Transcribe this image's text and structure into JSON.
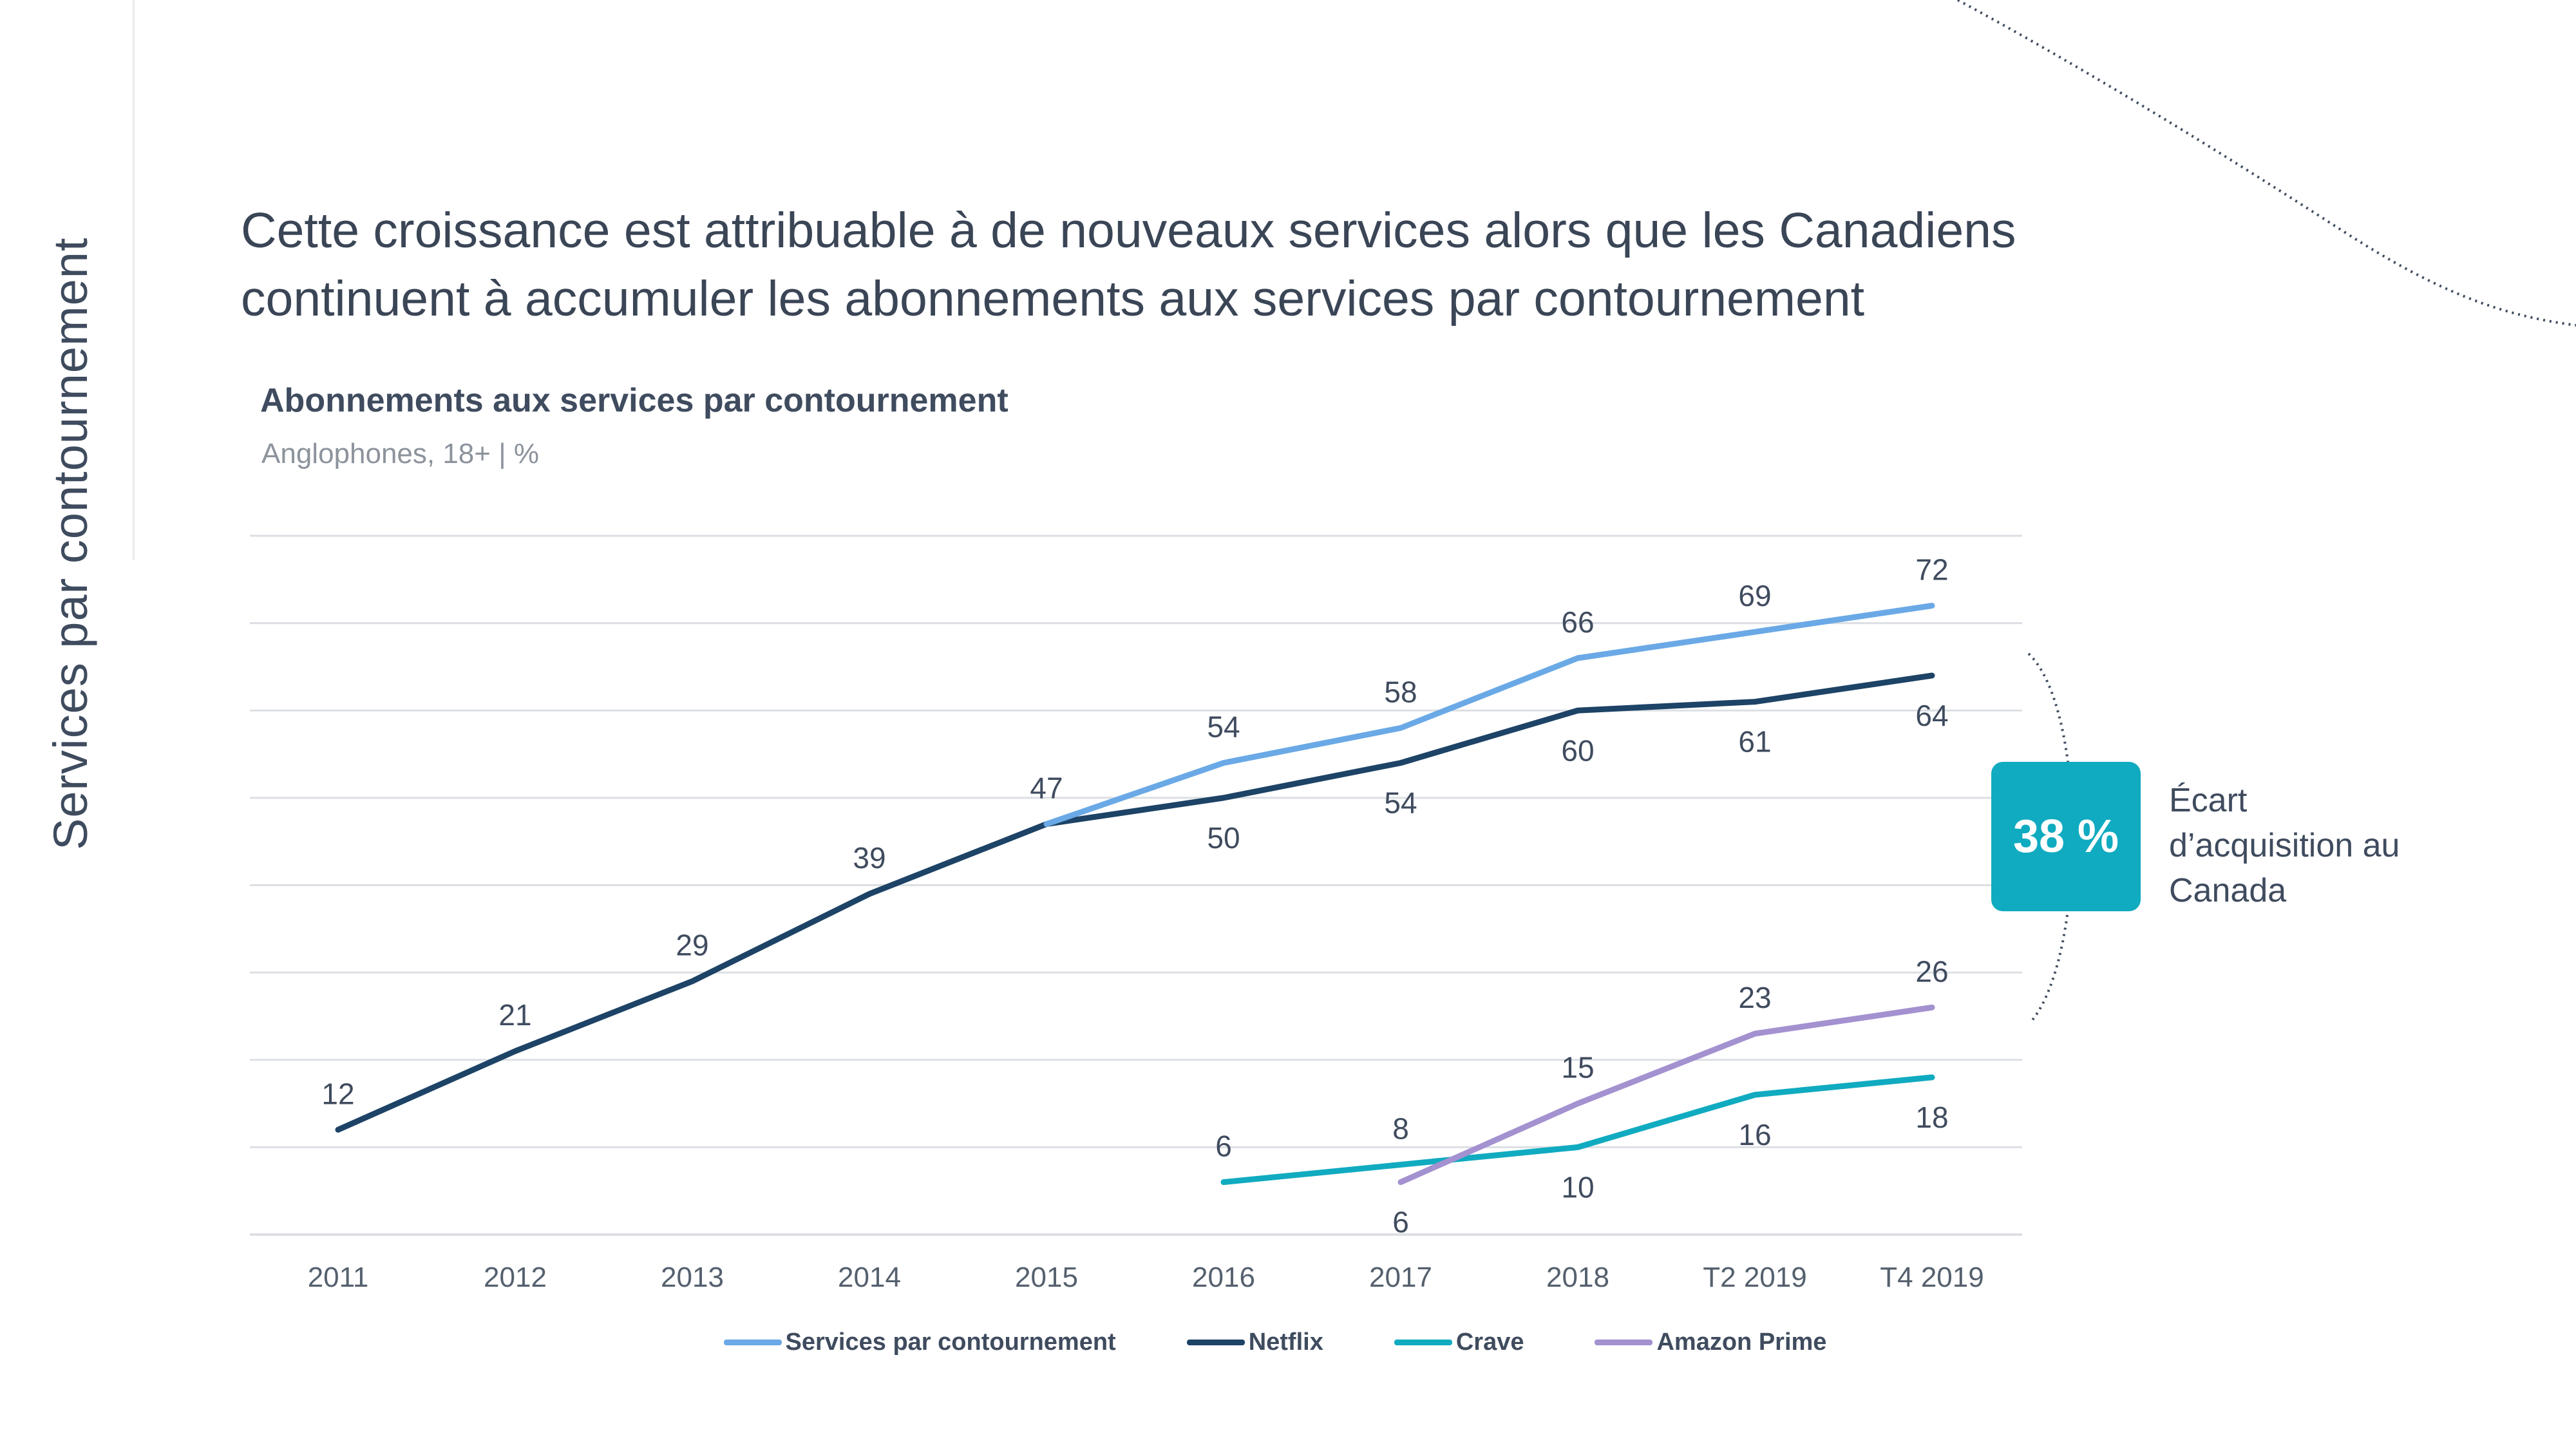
{
  "side_title": "Services par contournement",
  "headline_line1": "Cette croissance est attribuable à de nouveaux services alors que les Canadiens",
  "headline_line2": "continuent à accumuler les abonnements aux services par contournement",
  "gap": {
    "value": "38 %",
    "label": "Écart d’acquisition au Canada"
  },
  "colors": {
    "ott": "#6aa9e6",
    "netflix": "#1d4366",
    "crave": "#10abc0",
    "amazon": "#a391d0",
    "text": "#3f4b5e",
    "grid": "#dcdfe3",
    "accent_box": "#10abc0"
  },
  "chart_data": {
    "type": "line",
    "title": "Abonnements aux services par contournement",
    "subtitle": "Anglophones, 18+ | %",
    "categories": [
      "2011",
      "2012",
      "2013",
      "2014",
      "2015",
      "2016",
      "2017",
      "2018",
      "T2 2019",
      "T4 2019"
    ],
    "ylim": [
      0,
      80
    ],
    "grid": true,
    "legend_position": "bottom",
    "series": [
      {
        "name": "Services par contournement",
        "color": "#6aa9e6",
        "values": [
          null,
          null,
          null,
          null,
          47,
          54,
          58,
          66,
          69,
          72
        ],
        "labels": [
          "",
          "",
          "",
          "",
          "",
          "54",
          "58",
          "66",
          "69",
          "72"
        ]
      },
      {
        "name": "Netflix",
        "color": "#1d4366",
        "values": [
          12,
          21,
          29,
          39,
          47,
          50,
          54,
          60,
          61,
          64
        ],
        "labels": [
          "12",
          "21",
          "29",
          "39",
          "47",
          "50",
          "54",
          "60",
          "61",
          "64"
        ]
      },
      {
        "name": "Crave",
        "color": "#10abc0",
        "values": [
          null,
          null,
          null,
          null,
          null,
          6,
          8,
          10,
          16,
          18
        ],
        "labels": [
          "",
          "",
          "",
          "",
          "",
          "6",
          "8",
          "10",
          "16",
          "18"
        ]
      },
      {
        "name": "Amazon Prime",
        "color": "#a391d0",
        "values": [
          null,
          null,
          null,
          null,
          null,
          null,
          6,
          15,
          23,
          26
        ],
        "labels": [
          "",
          "",
          "",
          "",
          "",
          "",
          "6",
          "15",
          "23",
          "26"
        ]
      }
    ]
  }
}
